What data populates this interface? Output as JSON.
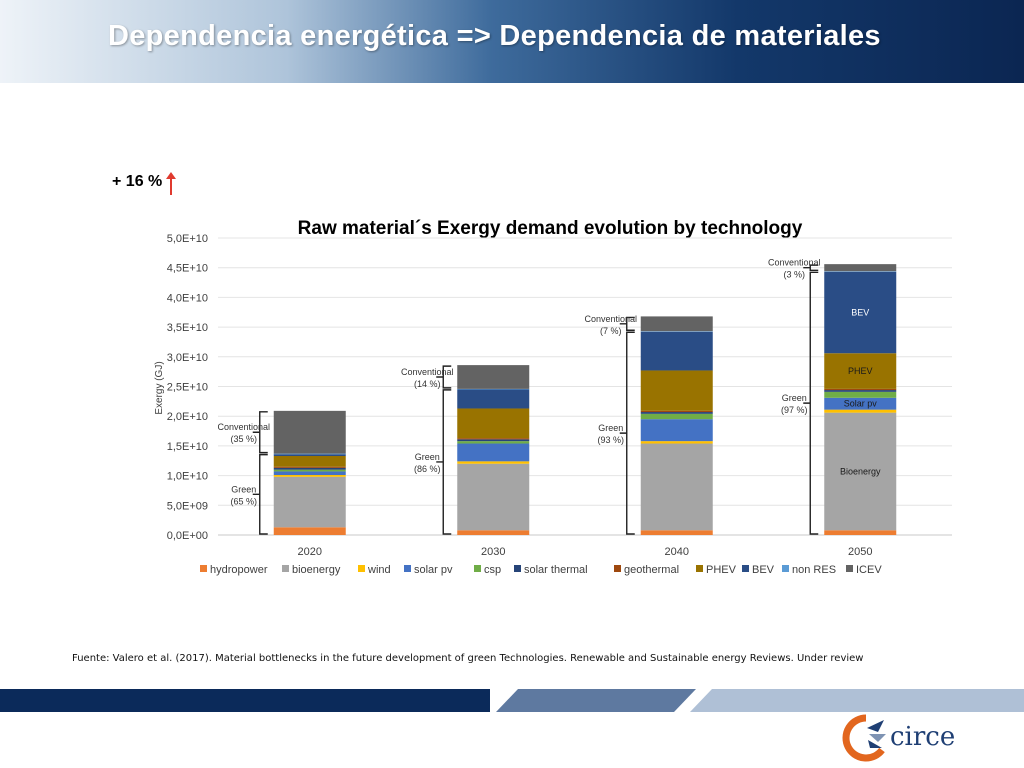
{
  "slide": {
    "title": "Dependencia energética => Dependencia de materiales",
    "increase_label": "+ 16 %",
    "source": "Fuente: Valero et al. (2017). Material bottlenecks in the future development of green Technologies. Renewable and Sustainable energy Reviews. Under review",
    "logo_text": "circe"
  },
  "colors": {
    "hydropower": "#ED7D31",
    "bioenergy": "#A5A5A5",
    "wind": "#FFC000",
    "solar pv": "#4472C4",
    "csp": "#70AD47",
    "solar thermal": "#264478",
    "geothermal": "#9E480E",
    "PHEV": "#997300",
    "BEV": "#2A4D86",
    "non RES": "#5B9BD5",
    "ICEV": "#636363",
    "arrow": "#E03A2F",
    "stripe_dark": "#0B2A5A",
    "stripe_mid": "#5E79A0",
    "stripe_light": "#AFC0D6"
  },
  "chart_data": {
    "type": "bar",
    "stacked": true,
    "title": "Raw material´s Exergy demand evolution by technology",
    "ylabel": "Exergy (GJ)",
    "xlabel": "",
    "categories": [
      "2020",
      "2030",
      "2040",
      "2050"
    ],
    "ylim": [
      0,
      50000000000
    ],
    "yticks": [
      0,
      5000000000,
      10000000000,
      15000000000,
      20000000000,
      25000000000,
      30000000000,
      35000000000,
      40000000000,
      45000000000,
      50000000000
    ],
    "ytick_labels": [
      "0,0E+00",
      "5,0E+09",
      "1,0E+10",
      "1,5E+10",
      "2,0E+10",
      "2,5E+10",
      "3,0E+10",
      "3,5E+10",
      "4,0E+10",
      "4,5E+10",
      "5,0E+10"
    ],
    "grid": true,
    "legend_position": "bottom",
    "series": [
      {
        "name": "hydropower",
        "values": [
          1300000000,
          800000000,
          800000000,
          800000000
        ]
      },
      {
        "name": "bioenergy",
        "values": [
          8500000000,
          11200000000,
          14600000000,
          19800000000
        ]
      },
      {
        "name": "wind",
        "values": [
          300000000,
          400000000,
          400000000,
          500000000
        ]
      },
      {
        "name": "solar pv",
        "values": [
          600000000,
          3000000000,
          3700000000,
          2000000000
        ]
      },
      {
        "name": "csp",
        "values": [
          300000000,
          400000000,
          900000000,
          1000000000
        ]
      },
      {
        "name": "solar thermal",
        "values": [
          300000000,
          300000000,
          300000000,
          300000000
        ]
      },
      {
        "name": "geothermal",
        "values": [
          200000000,
          200000000,
          200000000,
          200000000
        ]
      },
      {
        "name": "PHEV",
        "values": [
          1800000000,
          5000000000,
          6800000000,
          6000000000
        ]
      },
      {
        "name": "BEV",
        "values": [
          300000000,
          3200000000,
          6500000000,
          13700000000
        ]
      },
      {
        "name": "non RES",
        "values": [
          100000000,
          100000000,
          100000000,
          100000000
        ]
      },
      {
        "name": "ICEV",
        "values": [
          7200000000,
          4000000000,
          2500000000,
          1200000000
        ]
      }
    ],
    "annotations": [
      {
        "bar": 0,
        "label": "Conventional",
        "pct": "(35 %)"
      },
      {
        "bar": 0,
        "label": "Green",
        "pct": "(65 %)"
      },
      {
        "bar": 1,
        "label": "Conventional",
        "pct": "(14 %)"
      },
      {
        "bar": 1,
        "label": "Green",
        "pct": "(86 %)"
      },
      {
        "bar": 2,
        "label": "Conventional",
        "pct": "(7 %)"
      },
      {
        "bar": 2,
        "label": "Green",
        "pct": "(93 %)"
      },
      {
        "bar": 3,
        "label": "Conventional",
        "pct": "(3 %)"
      },
      {
        "bar": 3,
        "label": "Green",
        "pct": "(97 %)"
      }
    ],
    "inbar_labels": [
      {
        "bar": 3,
        "series": "BEV",
        "text": "BEV"
      },
      {
        "bar": 3,
        "series": "PHEV",
        "text": "PHEV"
      },
      {
        "bar": 3,
        "series": "solar pv",
        "text": "Solar pv"
      },
      {
        "bar": 3,
        "series": "bioenergy",
        "text": "Bioenergy"
      }
    ]
  }
}
